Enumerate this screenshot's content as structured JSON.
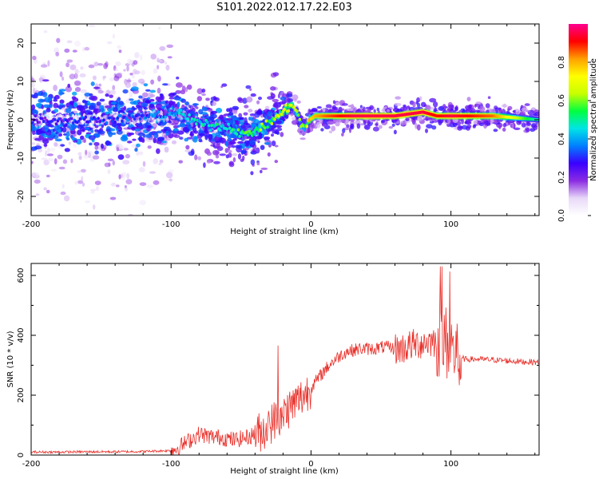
{
  "figure": {
    "title": "S101.2022.012.17.22.E03"
  },
  "chart_data": [
    {
      "type": "heatmap",
      "xlabel": "Height of straight line (km)",
      "ylabel": "Frequency (Hz)",
      "xlim": [
        -200,
        163
      ],
      "ylim": [
        -25,
        25
      ],
      "xticks": [
        -200,
        -100,
        0,
        100
      ],
      "yticks": [
        -20,
        -10,
        0,
        10,
        20
      ],
      "colorbar": {
        "label": "Normalized spectral amplitude",
        "range": [
          0,
          1
        ],
        "ticks": [
          "0.0",
          "0.2",
          "0.4",
          "0.6",
          "0.8"
        ],
        "colormap": [
          "#ffffff",
          "#e8d8f8",
          "#8a2be2",
          "#3a00ff",
          "#0080ff",
          "#00e5e5",
          "#00ff40",
          "#c8ff00",
          "#ffff00",
          "#ffa000",
          "#ff0000",
          "#ff0090"
        ]
      },
      "ridge": {
        "x": [
          -200,
          -150,
          -110,
          -95,
          -80,
          -60,
          -45,
          -30,
          -20,
          -14,
          -10,
          -7,
          -4,
          -1,
          3,
          10,
          30,
          60,
          80,
          90,
          100,
          130,
          163
        ],
        "frequency": [
          0,
          0,
          1,
          2,
          -1,
          -2,
          -4,
          -1,
          2,
          4,
          2,
          -1,
          -2,
          0,
          1,
          1,
          1,
          1,
          2,
          1,
          1,
          1,
          0
        ],
        "amplitude": [
          0.25,
          0.3,
          0.35,
          0.4,
          0.45,
          0.5,
          0.55,
          0.6,
          0.65,
          0.7,
          0.6,
          0.6,
          0.6,
          0.75,
          0.8,
          0.85,
          0.95,
          0.95,
          0.95,
          0.9,
          0.95,
          0.85,
          0.45
        ]
      }
    },
    {
      "type": "line",
      "xlabel": "Height of straight line (km)",
      "ylabel": "SNR (10 * v/v)",
      "xlim": [
        -200,
        163
      ],
      "ylim": [
        0,
        640
      ],
      "xticks": [
        -200,
        -100,
        0,
        100
      ],
      "yticks": [
        0,
        200,
        400,
        600
      ],
      "color": "#e8302a",
      "series": [
        {
          "x": [
            -200,
            -180,
            -160,
            -140,
            -120,
            -100,
            -95,
            -90,
            -85,
            -80,
            -75,
            -70,
            -65,
            -60,
            -55,
            -50,
            -45,
            -40,
            -35,
            -30,
            -25,
            -20,
            -15,
            -10,
            -5,
            0,
            5,
            10,
            15,
            20,
            25,
            30,
            35,
            40,
            45,
            50,
            55,
            60,
            65,
            70,
            75,
            80,
            85,
            90,
            95,
            100,
            105,
            110,
            120,
            130,
            140,
            150,
            163
          ],
          "values": [
            10,
            10,
            11,
            11,
            12,
            15,
            25,
            40,
            55,
            70,
            65,
            60,
            60,
            55,
            50,
            55,
            60,
            70,
            80,
            100,
            120,
            140,
            160,
            180,
            200,
            225,
            255,
            285,
            310,
            330,
            345,
            350,
            355,
            355,
            355,
            360,
            360,
            355,
            355,
            365,
            370,
            375,
            380,
            380,
            380,
            360,
            330,
            320,
            320,
            318,
            315,
            312,
            310
          ]
        }
      ]
    }
  ]
}
